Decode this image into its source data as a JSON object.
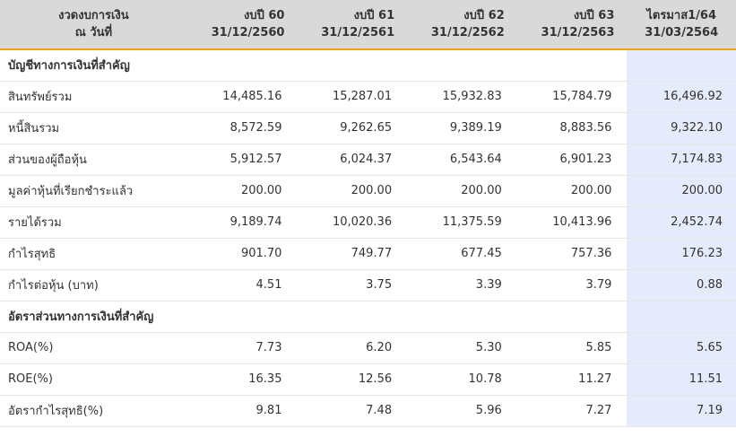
{
  "header": {
    "label_line1": "งวดงบการเงิน",
    "label_line2": "ณ วันที่",
    "periods": [
      {
        "name": "งบปี 60",
        "date": "31/12/2560"
      },
      {
        "name": "งบปี 61",
        "date": "31/12/2561"
      },
      {
        "name": "งบปี 62",
        "date": "31/12/2562"
      },
      {
        "name": "งบปี 63",
        "date": "31/12/2563"
      },
      {
        "name": "ไตรมาส1/64",
        "date": "31/03/2564"
      }
    ]
  },
  "sections": [
    {
      "title": "บัญชีทางการเงินที่สำคัญ",
      "rows": [
        {
          "label": "สินทรัพย์รวม",
          "values": [
            "14,485.16",
            "15,287.01",
            "15,932.83",
            "15,784.79",
            "16,496.92"
          ]
        },
        {
          "label": "หนี้สินรวม",
          "values": [
            "8,572.59",
            "9,262.65",
            "9,389.19",
            "8,883.56",
            "9,322.10"
          ]
        },
        {
          "label": "ส่วนของผู้ถือหุ้น",
          "values": [
            "5,912.57",
            "6,024.37",
            "6,543.64",
            "6,901.23",
            "7,174.83"
          ]
        },
        {
          "label": "มูลค่าหุ้นที่เรียกชำระแล้ว",
          "values": [
            "200.00",
            "200.00",
            "200.00",
            "200.00",
            "200.00"
          ]
        },
        {
          "label": "รายได้รวม",
          "values": [
            "9,189.74",
            "10,020.36",
            "11,375.59",
            "10,413.96",
            "2,452.74"
          ]
        },
        {
          "label": "กำไรสุทธิ",
          "values": [
            "901.70",
            "749.77",
            "677.45",
            "757.36",
            "176.23"
          ]
        },
        {
          "label": "กำไรต่อหุ้น (บาท)",
          "values": [
            "4.51",
            "3.75",
            "3.39",
            "3.79",
            "0.88"
          ]
        }
      ]
    },
    {
      "title": "อัตราส่วนทางการเงินที่สำคัญ",
      "rows": [
        {
          "label": "ROA(%)",
          "values": [
            "7.73",
            "6.20",
            "5.30",
            "5.85",
            "5.65"
          ]
        },
        {
          "label": "ROE(%)",
          "values": [
            "16.35",
            "12.56",
            "10.78",
            "11.27",
            "11.51"
          ]
        },
        {
          "label": "อัตรากำไรสุทธิ(%)",
          "values": [
            "9.81",
            "7.48",
            "5.96",
            "7.27",
            "7.19"
          ]
        }
      ]
    }
  ],
  "colors": {
    "header_bg": "#d9d9d9",
    "header_underline": "#f0a30a",
    "highlight_column_bg": "#e6ebfb",
    "row_divider": "#e6e6e6",
    "text": "#333333"
  }
}
